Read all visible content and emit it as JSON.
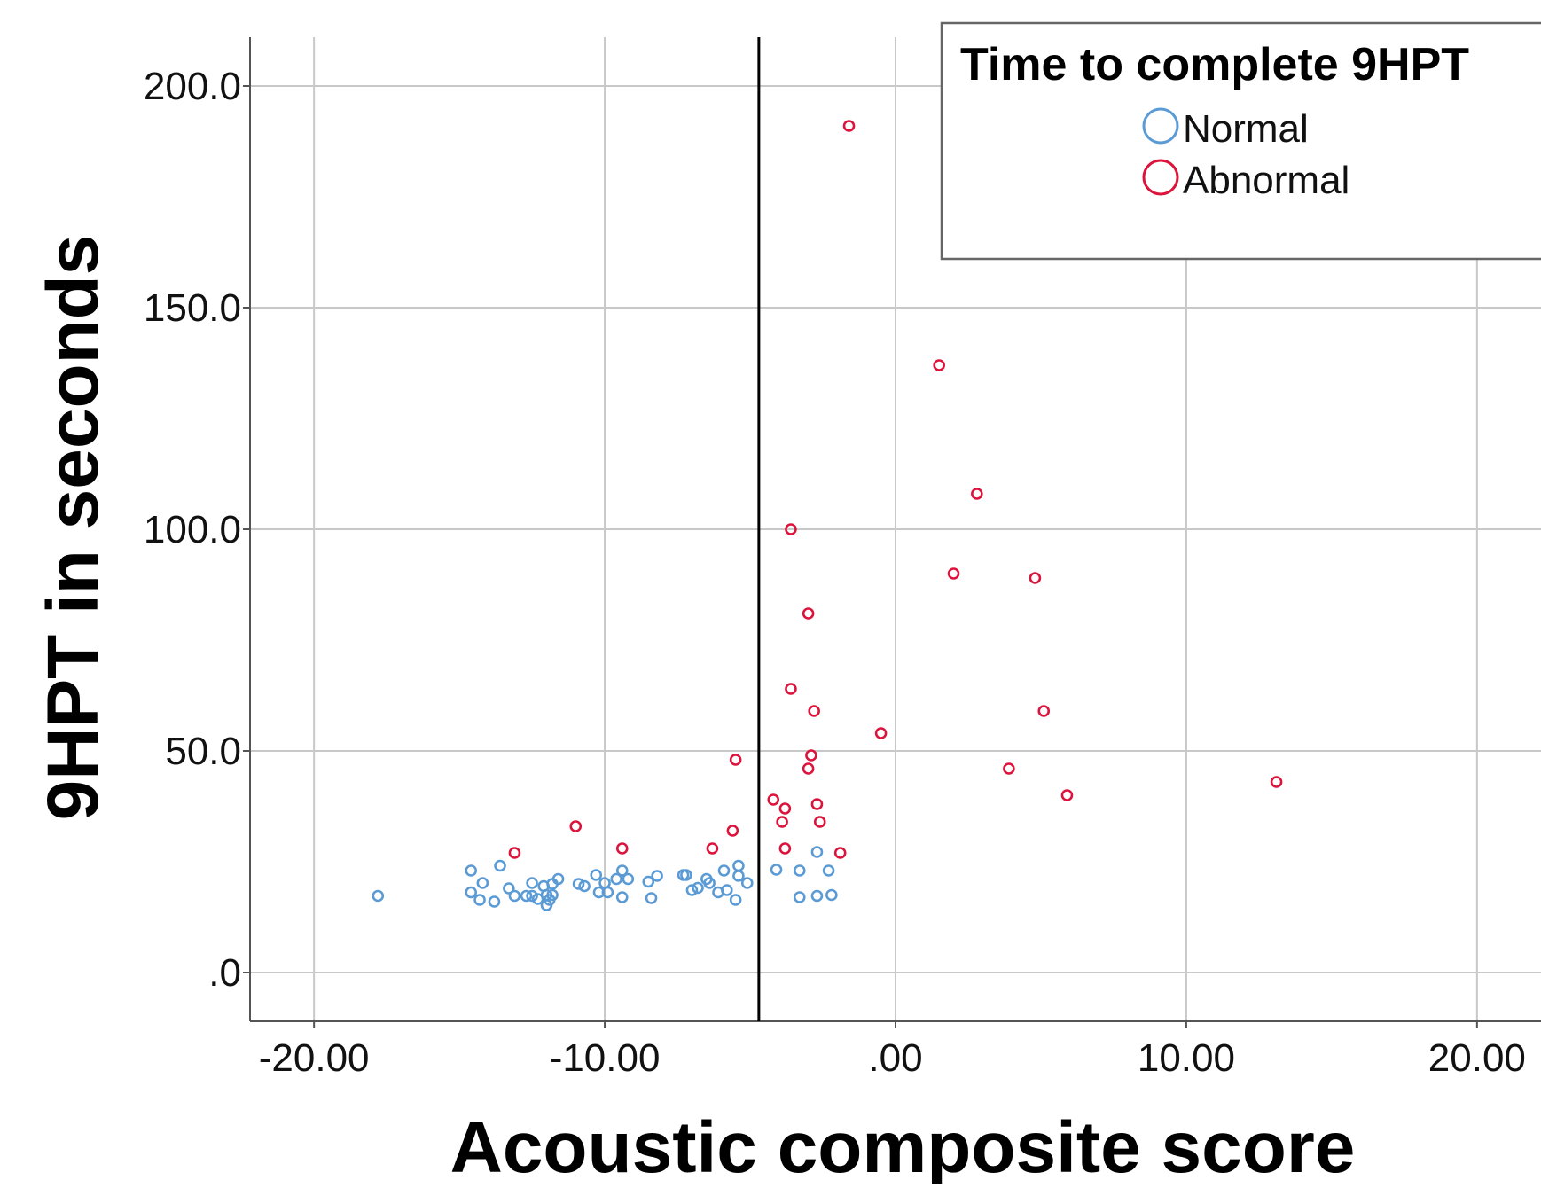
{
  "chart_data": {
    "type": "scatter",
    "title": "",
    "xlabel": "Acoustic composite score",
    "ylabel": "9HPT in seconds",
    "xlim": [
      -22.2,
      22.2
    ],
    "ylim": [
      -11,
      211
    ],
    "x_ticks": [
      -20,
      -10,
      0,
      10,
      20
    ],
    "x_tick_labels": [
      "-20.00",
      "-10.00",
      ".00",
      "10.00",
      "20.00"
    ],
    "y_ticks": [
      0,
      50,
      100,
      150,
      200
    ],
    "y_tick_labels": [
      ".0",
      "50.0",
      "100.0",
      "150.0",
      "200.0"
    ],
    "grid": true,
    "reference_line": {
      "axis": "x",
      "value": -4.7
    },
    "legend": {
      "title": "Time to complete 9HPT",
      "placement": "top-right"
    },
    "series": [
      {
        "name": "Normal",
        "color": "#5b9bd5",
        "points": [
          [
            -17.8,
            17.3
          ],
          [
            -14.6,
            23.0
          ],
          [
            -14.6,
            18.1
          ],
          [
            -14.2,
            20.2
          ],
          [
            -14.3,
            16.4
          ],
          [
            -13.8,
            16.0
          ],
          [
            -13.6,
            24.1
          ],
          [
            -13.3,
            19.0
          ],
          [
            -13.1,
            17.3
          ],
          [
            -12.7,
            17.3
          ],
          [
            -12.5,
            20.2
          ],
          [
            -12.5,
            17.3
          ],
          [
            -12.3,
            16.6
          ],
          [
            -12.1,
            19.5
          ],
          [
            -12.0,
            17.5
          ],
          [
            -12.0,
            15.2
          ],
          [
            -11.9,
            16.4
          ],
          [
            -11.8,
            17.5
          ],
          [
            -11.8,
            20.0
          ],
          [
            -11.6,
            21.1
          ],
          [
            -10.9,
            20.0
          ],
          [
            -10.7,
            19.5
          ],
          [
            -10.3,
            22.0
          ],
          [
            -10.2,
            18.1
          ],
          [
            -10.0,
            20.2
          ],
          [
            -9.9,
            18.1
          ],
          [
            -9.6,
            21.1
          ],
          [
            -9.4,
            17.0
          ],
          [
            -9.4,
            23.0
          ],
          [
            -9.2,
            21.1
          ],
          [
            -8.5,
            20.5
          ],
          [
            -8.4,
            16.8
          ],
          [
            -8.2,
            21.8
          ],
          [
            -7.3,
            22.0
          ],
          [
            -7.2,
            22.0
          ],
          [
            -7.0,
            18.6
          ],
          [
            -6.8,
            19.1
          ],
          [
            -6.5,
            21.1
          ],
          [
            -6.4,
            20.2
          ],
          [
            -6.1,
            18.1
          ],
          [
            -5.9,
            23.0
          ],
          [
            -5.8,
            18.6
          ],
          [
            -5.5,
            16.4
          ],
          [
            -5.4,
            24.1
          ],
          [
            -5.4,
            21.8
          ],
          [
            -5.1,
            20.2
          ],
          [
            -4.1,
            23.2
          ],
          [
            -3.3,
            23.0
          ],
          [
            -3.3,
            17.0
          ],
          [
            -2.7,
            27.2
          ],
          [
            -2.7,
            17.3
          ],
          [
            -2.3,
            23.0
          ],
          [
            -2.2,
            17.5
          ]
        ]
      },
      {
        "name": "Abnormal",
        "color": "#dc143c",
        "points": [
          [
            -1.6,
            191.0
          ],
          [
            1.5,
            137.0
          ],
          [
            2.8,
            108.0
          ],
          [
            -3.6,
            100.0
          ],
          [
            2.0,
            90.0
          ],
          [
            4.8,
            89.0
          ],
          [
            -3.0,
            81.0
          ],
          [
            -3.6,
            64.0
          ],
          [
            -2.8,
            59.0
          ],
          [
            5.1,
            59.0
          ],
          [
            -0.5,
            54.0
          ],
          [
            -5.5,
            48.0
          ],
          [
            -2.9,
            49.0
          ],
          [
            -3.0,
            46.0
          ],
          [
            3.9,
            46.0
          ],
          [
            13.1,
            43.0
          ],
          [
            5.9,
            40.0
          ],
          [
            -4.2,
            39.0
          ],
          [
            -3.8,
            37.0
          ],
          [
            -2.7,
            38.0
          ],
          [
            -3.9,
            34.0
          ],
          [
            -2.6,
            34.0
          ],
          [
            -11.0,
            33.0
          ],
          [
            -5.6,
            32.0
          ],
          [
            -9.4,
            28.0
          ],
          [
            -6.3,
            28.0
          ],
          [
            -3.8,
            28.0
          ],
          [
            -13.1,
            27.0
          ],
          [
            -1.9,
            27.0
          ]
        ]
      }
    ]
  }
}
